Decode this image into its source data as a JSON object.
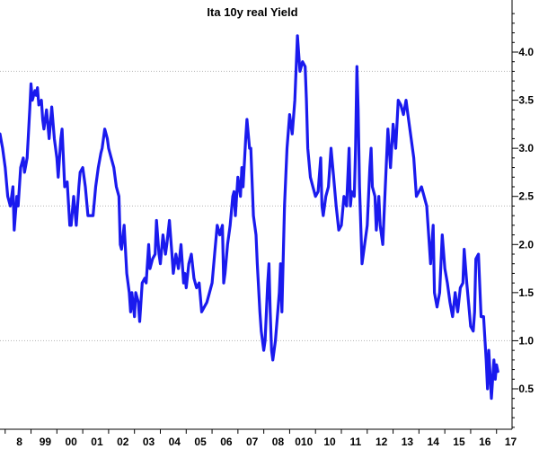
{
  "chart_data": {
    "type": "line",
    "title": "Ita 10y real Yield",
    "xlabel": "",
    "ylabel": "",
    "x_tick_labels": [
      "8",
      "99",
      "00",
      "01",
      "02",
      "03",
      "04",
      "05",
      "06",
      "07",
      "08",
      "010",
      "10",
      "11",
      "12",
      "13",
      "14",
      "15",
      "16",
      "17"
    ],
    "y_ticks": [
      0.5,
      1.0,
      1.5,
      2.0,
      2.5,
      3.0,
      3.5,
      4.0
    ],
    "y_tick_labels": [
      "0.5",
      "1.0",
      "1.5",
      "2.0",
      "2.5",
      "3.0",
      "3.5",
      "4.0"
    ],
    "ylim": [
      0.1,
      4.45
    ],
    "xlim": [
      1997.8,
      2017.6
    ],
    "gridlines_y": [
      1.0,
      2.4,
      3.8
    ],
    "grid": "dotted horizontal",
    "axis_side": "right",
    "series": [
      {
        "color": "#1a1aee",
        "points": [
          [
            1997.8,
            3.15
          ],
          [
            1997.9,
            3.0
          ],
          [
            1998.0,
            2.8
          ],
          [
            1998.1,
            2.5
          ],
          [
            1998.2,
            2.4
          ],
          [
            1998.3,
            2.6
          ],
          [
            1998.35,
            2.15
          ],
          [
            1998.45,
            2.5
          ],
          [
            1998.5,
            2.4
          ],
          [
            1998.6,
            2.8
          ],
          [
            1998.7,
            2.9
          ],
          [
            1998.75,
            2.75
          ],
          [
            1998.85,
            2.9
          ],
          [
            1998.95,
            3.4
          ],
          [
            1999.0,
            3.67
          ],
          [
            1999.05,
            3.5
          ],
          [
            1999.15,
            3.6
          ],
          [
            1999.2,
            3.55
          ],
          [
            1999.25,
            3.63
          ],
          [
            1999.3,
            3.45
          ],
          [
            1999.4,
            3.5
          ],
          [
            1999.45,
            3.3
          ],
          [
            1999.5,
            3.2
          ],
          [
            1999.6,
            3.4
          ],
          [
            1999.7,
            3.1
          ],
          [
            1999.8,
            3.43
          ],
          [
            1999.9,
            3.1
          ],
          [
            2000.0,
            2.9
          ],
          [
            2000.05,
            2.7
          ],
          [
            2000.15,
            3.1
          ],
          [
            2000.2,
            3.2
          ],
          [
            2000.3,
            2.6
          ],
          [
            2000.4,
            2.65
          ],
          [
            2000.5,
            2.2
          ],
          [
            2000.55,
            2.2
          ],
          [
            2000.65,
            2.5
          ],
          [
            2000.75,
            2.2
          ],
          [
            2000.85,
            2.6
          ],
          [
            2000.9,
            2.75
          ],
          [
            2001.0,
            2.8
          ],
          [
            2001.1,
            2.6
          ],
          [
            2001.2,
            2.3
          ],
          [
            2001.3,
            2.3
          ],
          [
            2001.4,
            2.3
          ],
          [
            2001.5,
            2.6
          ],
          [
            2001.6,
            2.8
          ],
          [
            2001.7,
            2.95
          ],
          [
            2001.75,
            3.0
          ],
          [
            2001.85,
            3.2
          ],
          [
            2001.95,
            3.1
          ],
          [
            2002.0,
            3.0
          ],
          [
            2002.1,
            2.9
          ],
          [
            2002.2,
            2.8
          ],
          [
            2002.3,
            2.6
          ],
          [
            2002.4,
            2.5
          ],
          [
            2002.45,
            2.0
          ],
          [
            2002.5,
            1.95
          ],
          [
            2002.6,
            2.2
          ],
          [
            2002.7,
            1.7
          ],
          [
            2002.8,
            1.5
          ],
          [
            2002.85,
            1.3
          ],
          [
            2002.9,
            1.5
          ],
          [
            2003.0,
            1.25
          ],
          [
            2003.05,
            1.5
          ],
          [
            2003.15,
            1.4
          ],
          [
            2003.2,
            1.2
          ],
          [
            2003.3,
            1.6
          ],
          [
            2003.4,
            1.65
          ],
          [
            2003.45,
            1.6
          ],
          [
            2003.55,
            2.0
          ],
          [
            2003.6,
            1.75
          ],
          [
            2003.7,
            1.85
          ],
          [
            2003.8,
            1.9
          ],
          [
            2003.85,
            2.25
          ],
          [
            2003.95,
            1.9
          ],
          [
            2004.0,
            1.8
          ],
          [
            2004.1,
            2.1
          ],
          [
            2004.2,
            1.9
          ],
          [
            2004.25,
            2.0
          ],
          [
            2004.35,
            2.25
          ],
          [
            2004.45,
            1.9
          ],
          [
            2004.5,
            1.7
          ],
          [
            2004.6,
            1.9
          ],
          [
            2004.7,
            1.75
          ],
          [
            2004.8,
            2.0
          ],
          [
            2004.9,
            1.6
          ],
          [
            2004.95,
            1.7
          ],
          [
            2005.0,
            1.55
          ],
          [
            2005.1,
            1.8
          ],
          [
            2005.2,
            1.9
          ],
          [
            2005.3,
            1.65
          ],
          [
            2005.4,
            1.55
          ],
          [
            2005.5,
            1.6
          ],
          [
            2005.55,
            1.45
          ],
          [
            2005.6,
            1.3
          ],
          [
            2005.7,
            1.35
          ],
          [
            2005.8,
            1.4
          ],
          [
            2005.9,
            1.5
          ],
          [
            2006.0,
            1.6
          ],
          [
            2006.1,
            1.9
          ],
          [
            2006.2,
            2.2
          ],
          [
            2006.3,
            2.1
          ],
          [
            2006.4,
            2.2
          ],
          [
            2006.45,
            1.6
          ],
          [
            2006.5,
            1.7
          ],
          [
            2006.6,
            2.0
          ],
          [
            2006.7,
            2.2
          ],
          [
            2006.8,
            2.5
          ],
          [
            2006.85,
            2.55
          ],
          [
            2006.9,
            2.3
          ],
          [
            2007.0,
            2.7
          ],
          [
            2007.1,
            2.5
          ],
          [
            2007.15,
            2.8
          ],
          [
            2007.2,
            2.6
          ],
          [
            2007.3,
            3.1
          ],
          [
            2007.35,
            3.3
          ],
          [
            2007.45,
            3.0
          ],
          [
            2007.5,
            3.0
          ],
          [
            2007.6,
            2.3
          ],
          [
            2007.7,
            2.1
          ],
          [
            2007.75,
            1.8
          ],
          [
            2007.85,
            1.3
          ],
          [
            2007.9,
            1.1
          ],
          [
            2008.0,
            0.9
          ],
          [
            2008.05,
            1.0
          ],
          [
            2008.15,
            1.6
          ],
          [
            2008.2,
            1.8
          ],
          [
            2008.25,
            1.3
          ],
          [
            2008.3,
            0.9
          ],
          [
            2008.35,
            0.8
          ],
          [
            2008.45,
            1.0
          ],
          [
            2008.6,
            1.5
          ],
          [
            2008.65,
            1.8
          ],
          [
            2008.7,
            1.3
          ],
          [
            2008.8,
            2.4
          ],
          [
            2008.9,
            3.0
          ],
          [
            2009.0,
            3.35
          ],
          [
            2009.1,
            3.15
          ],
          [
            2009.2,
            3.5
          ],
          [
            2009.3,
            4.17
          ],
          [
            2009.4,
            3.8
          ],
          [
            2009.5,
            3.9
          ],
          [
            2009.6,
            3.85
          ],
          [
            2009.65,
            3.5
          ],
          [
            2009.7,
            3.0
          ],
          [
            2009.8,
            2.7
          ],
          [
            2009.9,
            2.6
          ],
          [
            2010.0,
            2.5
          ],
          [
            2010.1,
            2.55
          ],
          [
            2010.2,
            2.9
          ],
          [
            2010.25,
            2.4
          ],
          [
            2010.3,
            2.3
          ],
          [
            2010.4,
            2.5
          ],
          [
            2010.5,
            2.6
          ],
          [
            2010.6,
            3.0
          ],
          [
            2010.7,
            2.7
          ],
          [
            2010.8,
            2.4
          ],
          [
            2010.9,
            2.15
          ],
          [
            2011.0,
            2.2
          ],
          [
            2011.1,
            2.5
          ],
          [
            2011.2,
            2.4
          ],
          [
            2011.3,
            3.0
          ],
          [
            2011.35,
            2.4
          ],
          [
            2011.4,
            2.55
          ],
          [
            2011.5,
            2.5
          ],
          [
            2011.55,
            3.0
          ],
          [
            2011.6,
            3.85
          ],
          [
            2011.65,
            3.4
          ],
          [
            2011.7,
            2.6
          ],
          [
            2011.8,
            1.8
          ],
          [
            2012.0,
            2.2
          ],
          [
            2012.1,
            2.8
          ],
          [
            2012.15,
            3.0
          ],
          [
            2012.2,
            2.6
          ],
          [
            2012.3,
            2.5
          ],
          [
            2012.35,
            2.15
          ],
          [
            2012.45,
            2.5
          ],
          [
            2012.5,
            2.2
          ],
          [
            2012.6,
            2.0
          ],
          [
            2012.7,
            2.6
          ],
          [
            2012.8,
            3.2
          ],
          [
            2012.9,
            2.8
          ],
          [
            2013.0,
            3.25
          ],
          [
            2013.1,
            3.0
          ],
          [
            2013.2,
            3.5
          ],
          [
            2013.3,
            3.45
          ],
          [
            2013.4,
            3.35
          ],
          [
            2013.5,
            3.5
          ],
          [
            2013.6,
            3.3
          ],
          [
            2013.7,
            3.1
          ],
          [
            2013.8,
            2.9
          ],
          [
            2013.9,
            2.5
          ],
          [
            2014.0,
            2.55
          ],
          [
            2014.1,
            2.6
          ],
          [
            2014.2,
            2.5
          ],
          [
            2014.3,
            2.4
          ],
          [
            2014.4,
            2.0
          ],
          [
            2014.45,
            1.8
          ],
          [
            2014.55,
            2.2
          ],
          [
            2014.6,
            1.5
          ],
          [
            2014.7,
            1.35
          ],
          [
            2014.8,
            1.5
          ],
          [
            2014.9,
            2.1
          ],
          [
            2015.0,
            1.75
          ],
          [
            2015.1,
            1.6
          ],
          [
            2015.2,
            1.4
          ],
          [
            2015.3,
            1.25
          ],
          [
            2015.4,
            1.5
          ],
          [
            2015.5,
            1.3
          ],
          [
            2015.6,
            1.55
          ],
          [
            2015.7,
            1.6
          ],
          [
            2015.75,
            1.95
          ],
          [
            2015.85,
            1.6
          ],
          [
            2015.95,
            1.3
          ],
          [
            2016.0,
            1.15
          ],
          [
            2016.1,
            1.1
          ],
          [
            2016.15,
            1.3
          ],
          [
            2016.2,
            1.85
          ],
          [
            2016.3,
            1.9
          ],
          [
            2016.4,
            1.25
          ],
          [
            2016.5,
            1.25
          ],
          [
            2016.6,
            0.8
          ],
          [
            2016.65,
            0.5
          ],
          [
            2016.7,
            0.9
          ],
          [
            2016.8,
            0.4
          ],
          [
            2016.9,
            0.8
          ],
          [
            2016.95,
            0.6
          ],
          [
            2017.0,
            0.75
          ],
          [
            2017.05,
            0.68
          ]
        ]
      }
    ]
  }
}
